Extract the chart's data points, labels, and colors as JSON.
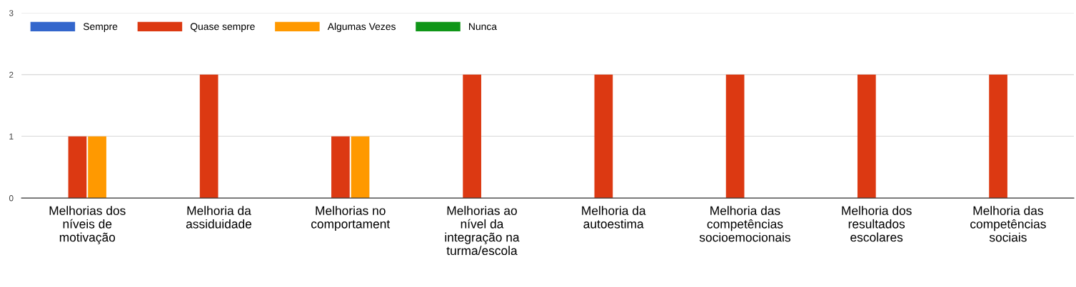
{
  "chart_data": {
    "type": "bar",
    "categories": [
      "Melhorias dos\nníveis de\nmotivação",
      "Melhoria da\nassiduidade",
      "Melhorias no\ncomportament",
      "Melhorias ao\nnível da\nintegração na\nturma/escola",
      "Melhoria da\nautoestima",
      "Melhoria das\ncompetências\nsocioemocionais",
      "Melhoria dos\nresultados\nescolares",
      "Melhoria das\ncompetências\nsociais"
    ],
    "series": [
      {
        "name": "Sempre",
        "color": "#3366cc",
        "values": [
          0,
          0,
          0,
          0,
          0,
          0,
          0,
          0
        ]
      },
      {
        "name": "Quase sempre",
        "color": "#dc3912",
        "values": [
          1,
          2,
          1,
          2,
          2,
          2,
          2,
          2
        ]
      },
      {
        "name": "Algumas Vezes",
        "color": "#ff9900",
        "values": [
          1,
          0,
          1,
          0,
          0,
          0,
          0,
          0
        ]
      },
      {
        "name": "Nunca",
        "color": "#109618",
        "values": [
          0,
          0,
          0,
          0,
          0,
          0,
          0,
          0
        ]
      }
    ],
    "ylim": [
      0,
      3
    ],
    "yticks": [
      0,
      1,
      2,
      3
    ],
    "grid": "y",
    "legend": "top left"
  }
}
